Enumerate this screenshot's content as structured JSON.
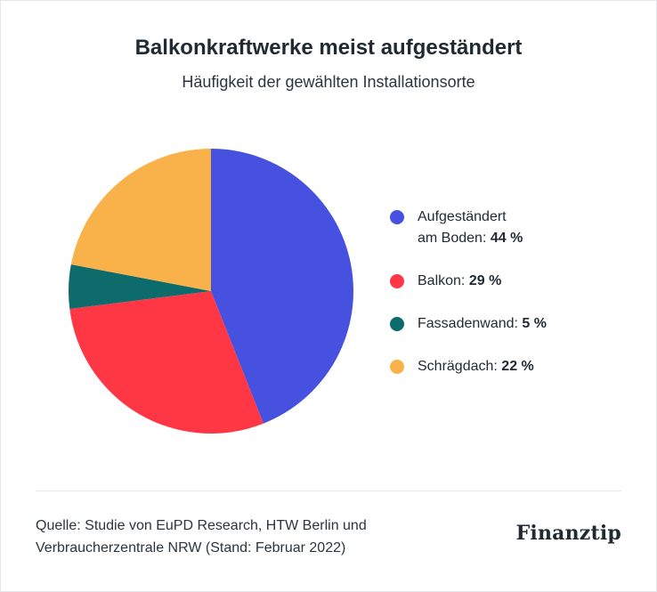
{
  "header": {
    "title": "Balkonkraftwerke meist aufgeständert",
    "subtitle": "Häufigkeit der gewählten Installationsorte"
  },
  "chart_data": {
    "type": "pie",
    "title": "Balkonkraftwerke meist aufgeständert",
    "subtitle": "Häufigkeit der gewählten Installationsorte",
    "unit": "%",
    "legend_position": "right",
    "start_angle_deg": 0,
    "direction": "clockwise",
    "slices": [
      {
        "label_line1": "Aufgeständert",
        "label_line2": "am Boden:",
        "value": 44,
        "value_label": "44 %",
        "color": "#4651e0"
      },
      {
        "label_line1": "Balkon:",
        "label_line2": "",
        "value": 29,
        "value_label": "29 %",
        "color": "#ff3644"
      },
      {
        "label_line1": "Fassadenwand:",
        "label_line2": "",
        "value": 5,
        "value_label": "5 %",
        "color": "#0e6b6b"
      },
      {
        "label_line1": "Schrägdach:",
        "label_line2": "",
        "value": 22,
        "value_label": "22 %",
        "color": "#f9b24a"
      }
    ]
  },
  "footer": {
    "source_line1": "Quelle: Studie von EuPD Research, HTW Berlin und",
    "source_line2": "Verbraucherzentrale NRW (Stand: Februar 2022)",
    "logo_text": "Finanztip"
  }
}
